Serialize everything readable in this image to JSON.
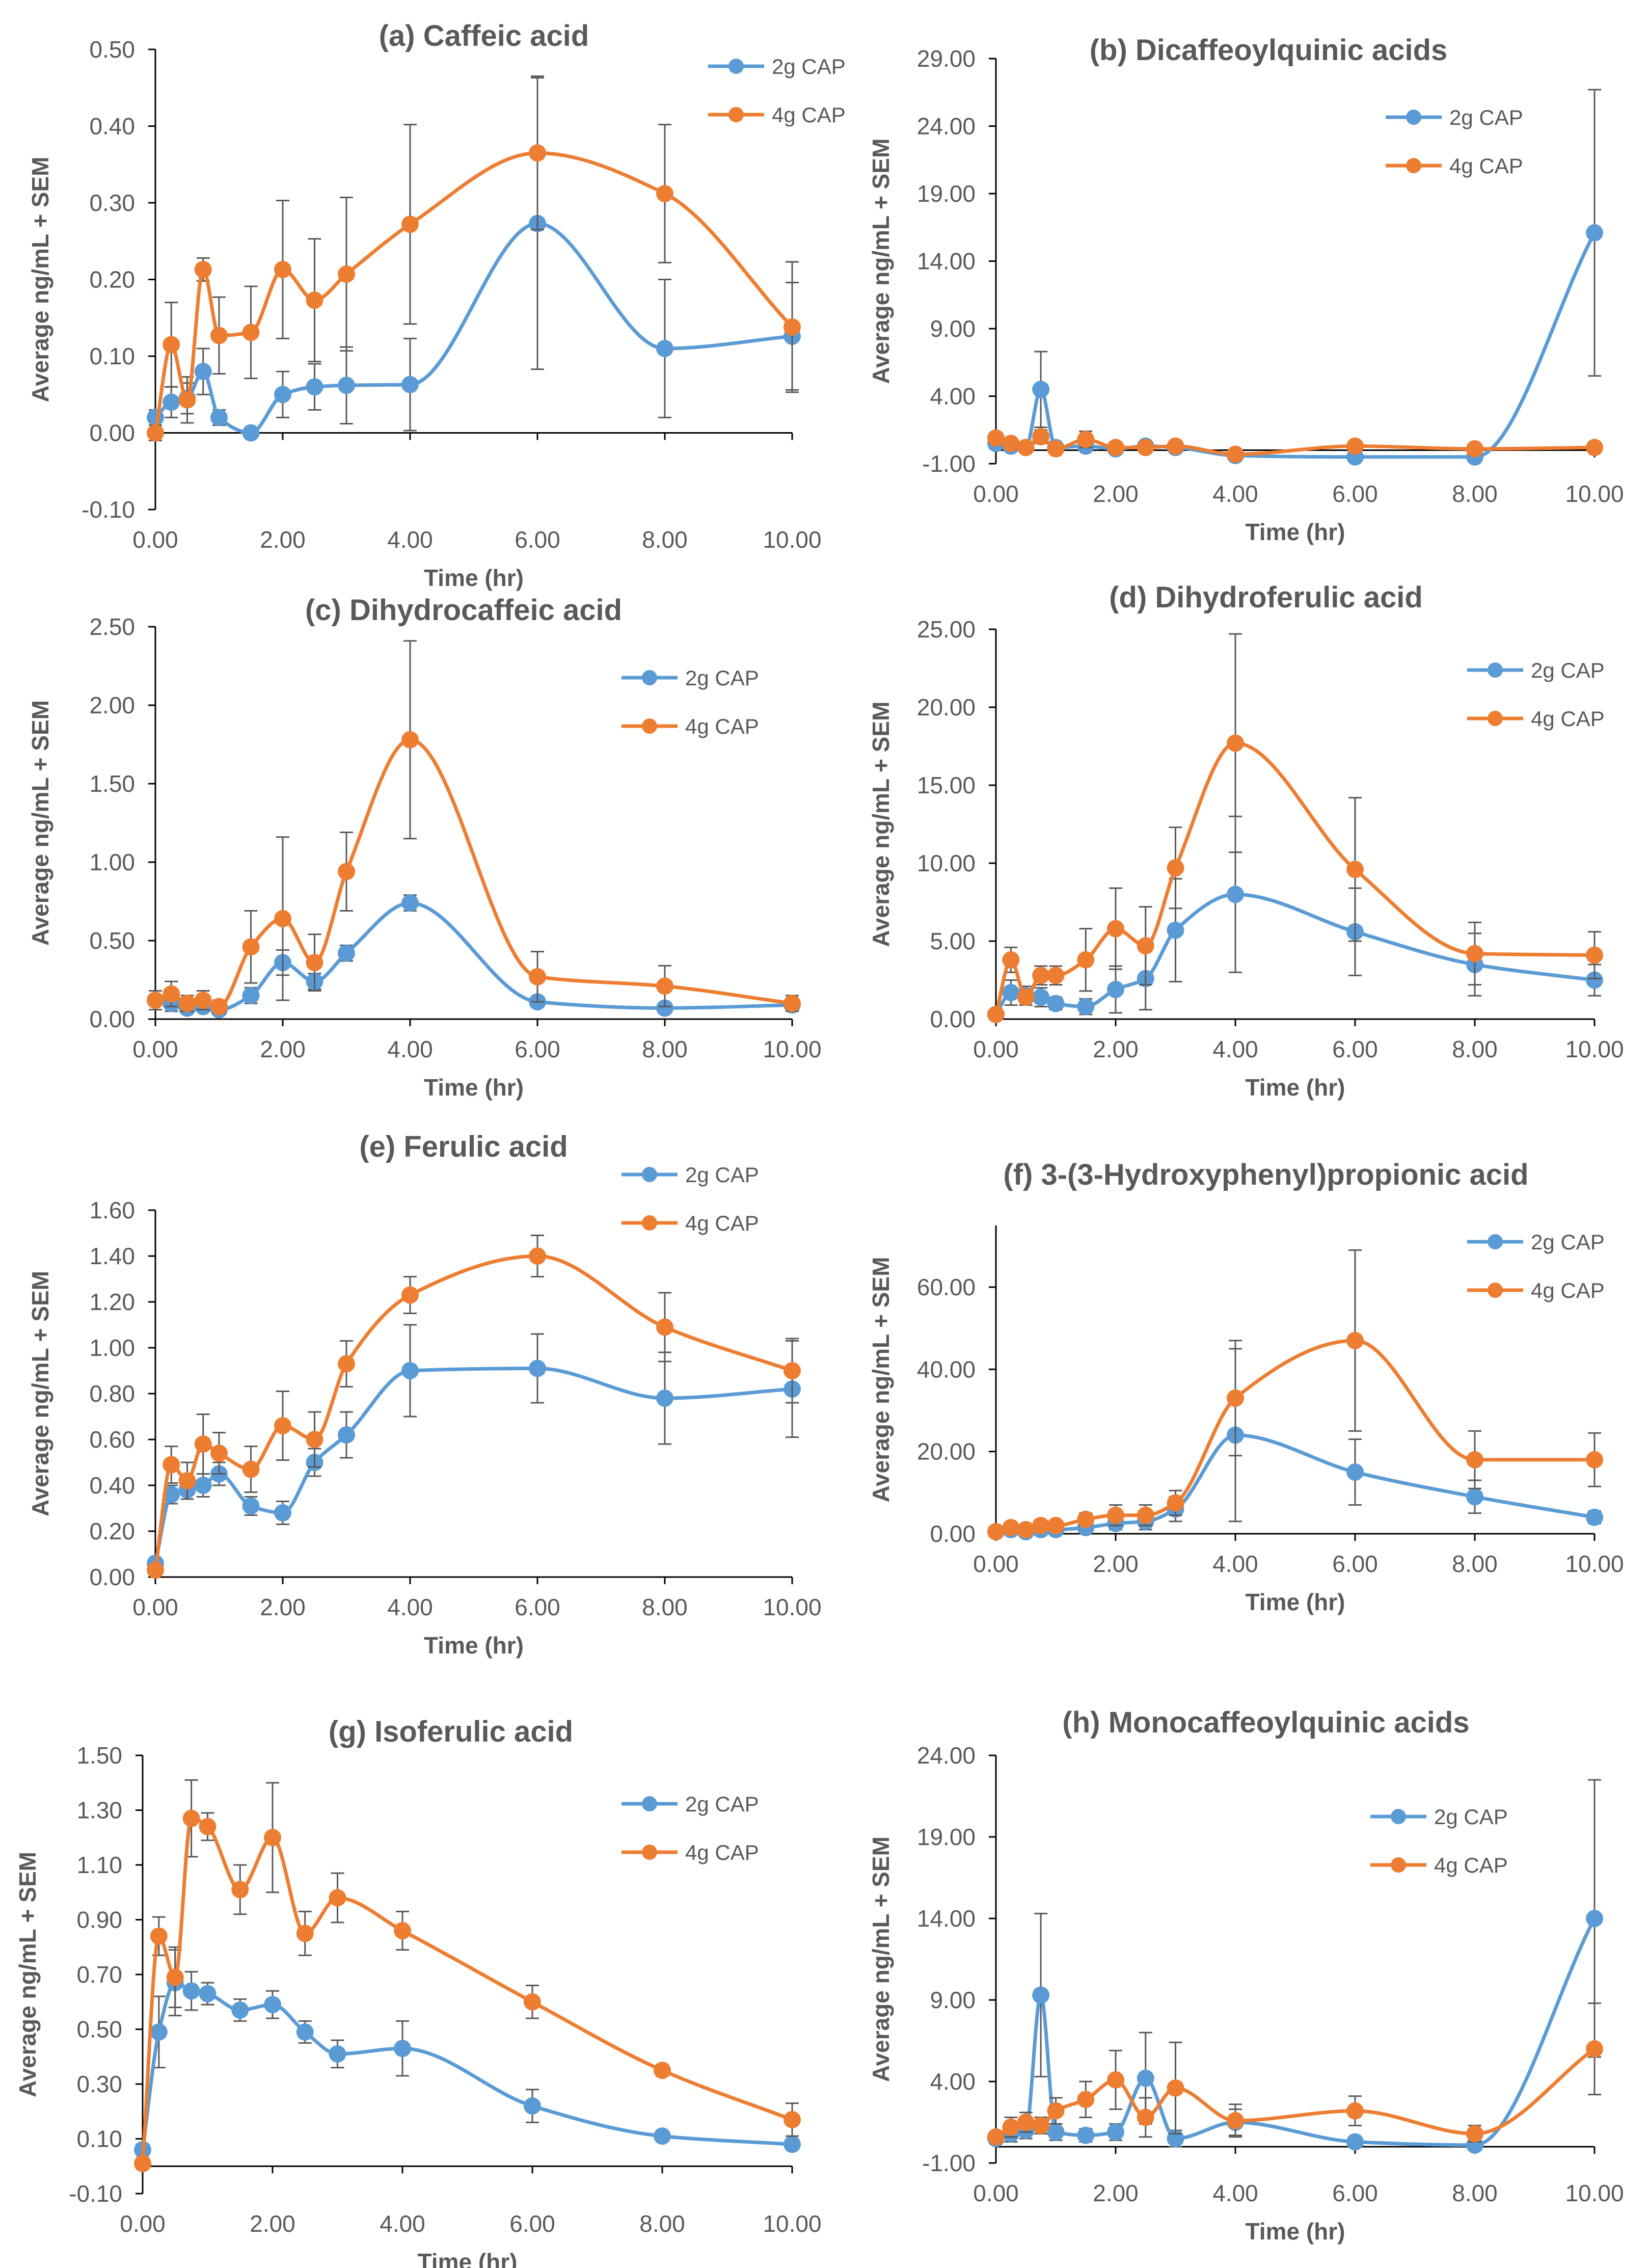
{
  "figure": {
    "series_names": [
      "2g CAP",
      "4g CAP"
    ],
    "colors": {
      "2g CAP": "#5B9BD5",
      "4g CAP": "#ED7D31",
      "errorbar": "#595959",
      "text": "#595959",
      "axis": "#000000"
    }
  },
  "chart_data": [
    {
      "id": "a",
      "type": "line",
      "title": "(a) Caffeic acid",
      "xlabel": "Time (hr)",
      "ylabel": "Average ng/mL + SEM",
      "xlim": [
        0,
        10
      ],
      "ylim": [
        -0.1,
        0.5
      ],
      "xticks": [
        0,
        2,
        4,
        6,
        8,
        10
      ],
      "xtick_labels": [
        "0.00",
        "2.00",
        "4.00",
        "6.00",
        "8.00",
        "10.00"
      ],
      "yticks": [
        -0.1,
        0,
        0.1,
        0.2,
        0.3,
        0.4,
        0.5
      ],
      "ytick_labels": [
        "-0.10",
        "0.00",
        "0.10",
        "0.20",
        "0.30",
        "0.40",
        "0.50"
      ],
      "legend_position": "top-right",
      "series": [
        {
          "name": "2g CAP",
          "x": [
            0,
            0.25,
            0.5,
            0.75,
            1,
            1.5,
            2,
            2.5,
            3,
            4,
            6,
            8,
            10
          ],
          "values": [
            0.02,
            0.04,
            0.045,
            0.08,
            0.02,
            0.0,
            0.05,
            0.06,
            0.062,
            0.063,
            0.273,
            0.11,
            0.126
          ],
          "sem": [
            0.01,
            0.02,
            0.02,
            0.03,
            0.01,
            0.005,
            0.03,
            0.03,
            0.05,
            0.06,
            0.19,
            0.09,
            0.07
          ]
        },
        {
          "name": "4g CAP",
          "x": [
            0,
            0.25,
            0.5,
            0.75,
            1,
            1.5,
            2,
            2.5,
            3,
            4,
            6,
            8,
            10
          ],
          "values": [
            0.0,
            0.115,
            0.043,
            0.213,
            0.127,
            0.131,
            0.213,
            0.173,
            0.207,
            0.272,
            0.365,
            0.312,
            0.138
          ],
          "sem": [
            0.01,
            0.055,
            0.03,
            0.015,
            0.05,
            0.06,
            0.09,
            0.08,
            0.1,
            0.13,
            0.1,
            0.09,
            0.085
          ]
        }
      ]
    },
    {
      "id": "b",
      "type": "line",
      "title": "(b) Dicaffeoylquinic acids",
      "xlabel": "Time (hr)",
      "ylabel": "Average ng/mL + SEM",
      "xlim": [
        0,
        10
      ],
      "ylim": [
        -1,
        29
      ],
      "xticks": [
        0,
        2,
        4,
        6,
        8,
        10
      ],
      "xtick_labels": [
        "0.00",
        "2.00",
        "4.00",
        "6.00",
        "8.00",
        "10.00"
      ],
      "yticks": [
        -1,
        4,
        9,
        14,
        19,
        24,
        29
      ],
      "ytick_labels": [
        "-1.00",
        "4.00",
        "9.00",
        "14.00",
        "19.00",
        "24.00",
        "29.00"
      ],
      "legend_position": "top-center",
      "series": [
        {
          "name": "2g CAP",
          "x": [
            0,
            0.25,
            0.5,
            0.75,
            1,
            1.5,
            2,
            2.5,
            3,
            4,
            6,
            8,
            10
          ],
          "values": [
            0.5,
            0.3,
            0.2,
            4.5,
            0.2,
            0.3,
            0.1,
            0.3,
            0.2,
            -0.4,
            -0.5,
            -0.5,
            16.1
          ],
          "sem": [
            0.4,
            0.3,
            0.3,
            2.8,
            0.2,
            0.3,
            0.2,
            0.2,
            0.2,
            0.3,
            0.3,
            0.3,
            10.6
          ]
        },
        {
          "name": "4g CAP",
          "x": [
            0,
            0.25,
            0.5,
            0.75,
            1,
            1.5,
            2,
            2.5,
            3,
            4,
            6,
            8,
            10
          ],
          "values": [
            0.9,
            0.5,
            0.2,
            1.0,
            0.1,
            0.8,
            0.2,
            0.2,
            0.3,
            -0.3,
            0.3,
            0.1,
            0.2
          ],
          "sem": [
            0.4,
            0.3,
            0.3,
            0.5,
            0.2,
            0.6,
            0.3,
            0.2,
            0.2,
            0.3,
            0.3,
            0.2,
            0.3
          ]
        }
      ]
    },
    {
      "id": "c",
      "type": "line",
      "title": "(c) Dihydrocaffeic acid",
      "xlabel": "Time (hr)",
      "ylabel": "Average ng/mL + SEM",
      "xlim": [
        0,
        10
      ],
      "ylim": [
        0,
        2.5
      ],
      "xticks": [
        0,
        2,
        4,
        6,
        8,
        10
      ],
      "xtick_labels": [
        "0.00",
        "2.00",
        "4.00",
        "6.00",
        "8.00",
        "10.00"
      ],
      "yticks": [
        0,
        0.5,
        1,
        1.5,
        2,
        2.5
      ],
      "ytick_labels": [
        "0.00",
        "0.50",
        "1.00",
        "1.50",
        "2.00",
        "2.50"
      ],
      "legend_position": "top-right",
      "series": [
        {
          "name": "2g CAP",
          "x": [
            0,
            0.25,
            0.5,
            0.75,
            1,
            1.5,
            2,
            2.5,
            3,
            4,
            6,
            8,
            10
          ],
          "values": [
            0.12,
            0.1,
            0.07,
            0.08,
            0.06,
            0.15,
            0.36,
            0.24,
            0.42,
            0.74,
            0.11,
            0.07,
            0.09
          ],
          "sem": [
            0.03,
            0.05,
            0.03,
            0.03,
            0.02,
            0.05,
            0.08,
            0.05,
            0.05,
            0.05,
            0.03,
            0.03,
            0.03
          ]
        },
        {
          "name": "4g CAP",
          "x": [
            0,
            0.25,
            0.5,
            0.75,
            1,
            1.5,
            2,
            2.5,
            3,
            4,
            6,
            8,
            10
          ],
          "values": [
            0.12,
            0.16,
            0.1,
            0.12,
            0.08,
            0.46,
            0.64,
            0.36,
            0.94,
            1.78,
            0.27,
            0.21,
            0.1
          ],
          "sem": [
            0.06,
            0.08,
            0.05,
            0.06,
            0.04,
            0.23,
            0.52,
            0.18,
            0.25,
            0.63,
            0.16,
            0.13,
            0.05
          ]
        }
      ]
    },
    {
      "id": "d",
      "type": "line",
      "title": "(d) Dihydroferulic acid",
      "xlabel": "Time (hr)",
      "ylabel": "Average ng/mL + SEM",
      "xlim": [
        0,
        10
      ],
      "ylim": [
        0,
        25
      ],
      "xticks": [
        0,
        2,
        4,
        6,
        8,
        10
      ],
      "xtick_labels": [
        "0.00",
        "2.00",
        "4.00",
        "6.00",
        "8.00",
        "10.00"
      ],
      "yticks": [
        0,
        5,
        10,
        15,
        20,
        25
      ],
      "ytick_labels": [
        "0.00",
        "5.00",
        "10.00",
        "15.00",
        "20.00",
        "25.00"
      ],
      "legend_position": "top-right",
      "series": [
        {
          "name": "2g CAP",
          "x": [
            0,
            0.25,
            0.5,
            0.75,
            1,
            1.5,
            2,
            2.5,
            3,
            4,
            6,
            8,
            10
          ],
          "values": [
            0.3,
            1.7,
            1.5,
            1.4,
            1.0,
            0.8,
            1.9,
            2.6,
            5.7,
            8.0,
            5.6,
            3.5,
            2.5
          ],
          "sem": [
            0.2,
            0.8,
            0.6,
            0.6,
            0.4,
            0.5,
            1.5,
            2.0,
            3.3,
            5.0,
            2.8,
            2.0,
            1.0
          ]
        },
        {
          "name": "4g CAP",
          "x": [
            0,
            0.25,
            0.5,
            0.75,
            1,
            1.5,
            2,
            2.5,
            3,
            4,
            6,
            8,
            10
          ],
          "values": [
            0.3,
            3.8,
            1.4,
            2.8,
            2.8,
            3.8,
            5.8,
            4.7,
            9.7,
            17.7,
            9.6,
            4.2,
            4.1
          ],
          "sem": [
            0.2,
            0.8,
            0.5,
            0.6,
            0.6,
            2.0,
            2.6,
            2.5,
            2.6,
            7.0,
            4.6,
            2.0,
            1.5
          ]
        }
      ]
    },
    {
      "id": "e",
      "type": "line",
      "title": "(e) Ferulic acid",
      "xlabel": "Time (hr)",
      "ylabel": "Average ng/mL + SEM",
      "xlim": [
        0,
        10
      ],
      "ylim": [
        0,
        1.6
      ],
      "xticks": [
        0,
        2,
        4,
        6,
        8,
        10
      ],
      "xtick_labels": [
        "0.00",
        "2.00",
        "4.00",
        "6.00",
        "8.00",
        "10.00"
      ],
      "yticks": [
        0,
        0.2,
        0.4,
        0.6,
        0.8,
        1,
        1.2,
        1.4,
        1.6
      ],
      "ytick_labels": [
        "0.00",
        "0.20",
        "0.40",
        "0.60",
        "0.80",
        "1.00",
        "1.20",
        "1.40",
        "1.60"
      ],
      "legend_position": "top-right",
      "series": [
        {
          "name": "2g CAP",
          "x": [
            0,
            0.25,
            0.5,
            0.75,
            1,
            1.5,
            2,
            2.5,
            3,
            4,
            6,
            8,
            10
          ],
          "values": [
            0.06,
            0.36,
            0.38,
            0.4,
            0.45,
            0.31,
            0.28,
            0.5,
            0.62,
            0.9,
            0.91,
            0.78,
            0.82
          ],
          "sem": [
            0.02,
            0.04,
            0.04,
            0.05,
            0.05,
            0.04,
            0.05,
            0.06,
            0.1,
            0.2,
            0.15,
            0.2,
            0.21
          ]
        },
        {
          "name": "4g CAP",
          "x": [
            0,
            0.25,
            0.5,
            0.75,
            1,
            1.5,
            2,
            2.5,
            3,
            4,
            6,
            8,
            10
          ],
          "values": [
            0.03,
            0.49,
            0.42,
            0.58,
            0.54,
            0.47,
            0.66,
            0.6,
            0.93,
            1.23,
            1.4,
            1.09,
            0.9
          ],
          "sem": [
            0.02,
            0.08,
            0.08,
            0.13,
            0.09,
            0.1,
            0.15,
            0.12,
            0.1,
            0.08,
            0.09,
            0.15,
            0.14
          ]
        }
      ]
    },
    {
      "id": "f",
      "type": "line",
      "title": "(f) 3-(3-Hydroxyphenyl)propionic acid",
      "xlabel": "Time (hr)",
      "ylabel": "Average ng/mL + SEM",
      "xlim": [
        0,
        10
      ],
      "ylim": [
        0,
        75
      ],
      "xticks": [
        0,
        2,
        4,
        6,
        8,
        10
      ],
      "xtick_labels": [
        "0.00",
        "2.00",
        "4.00",
        "6.00",
        "8.00",
        "10.00"
      ],
      "yticks": [
        0,
        20,
        40,
        60
      ],
      "ytick_labels": [
        "0.00",
        "20.00",
        "40.00",
        "60.00"
      ],
      "legend_position": "top-right",
      "series": [
        {
          "name": "2g CAP",
          "x": [
            0,
            0.25,
            0.5,
            0.75,
            1,
            1.5,
            2,
            2.5,
            3,
            4,
            6,
            8,
            10
          ],
          "values": [
            0.5,
            1.0,
            0.5,
            1.0,
            1.0,
            1.5,
            2.5,
            3.0,
            6.0,
            24.0,
            15.0,
            9.0,
            4.0
          ],
          "sem": [
            0.3,
            0.5,
            0.4,
            0.5,
            0.5,
            0.8,
            1.5,
            2.0,
            3.0,
            21.0,
            8.0,
            4.0,
            1.5
          ]
        },
        {
          "name": "4g CAP",
          "x": [
            0,
            0.25,
            0.5,
            0.75,
            1,
            1.5,
            2,
            2.5,
            3,
            4,
            6,
            8,
            10
          ],
          "values": [
            0.5,
            1.5,
            1.0,
            2.0,
            2.0,
            3.5,
            4.5,
            4.5,
            7.5,
            33.0,
            47.0,
            18.0,
            18.0
          ],
          "sem": [
            0.3,
            0.8,
            0.5,
            1.0,
            1.0,
            1.5,
            2.5,
            2.5,
            3.0,
            14.0,
            22.0,
            7.0,
            6.5
          ]
        }
      ]
    },
    {
      "id": "g",
      "type": "line",
      "title": "(g) Isoferulic acid",
      "xlabel": "Time (hr)",
      "ylabel": "Average ng/mL + SEM",
      "xlim": [
        0,
        10
      ],
      "ylim": [
        -0.1,
        1.5
      ],
      "xticks": [
        0,
        2,
        4,
        6,
        8,
        10
      ],
      "xtick_labels": [
        "0.00",
        "2.00",
        "4.00",
        "6.00",
        "8.00",
        "10.00"
      ],
      "yticks": [
        -0.1,
        0.1,
        0.3,
        0.5,
        0.7,
        0.9,
        1.1,
        1.3,
        1.5
      ],
      "ytick_labels": [
        "-0.10",
        "0.10",
        "0.30",
        "0.50",
        "0.70",
        "0.90",
        "1.10",
        "1.30",
        "1.50"
      ],
      "legend_position": "top-right",
      "series": [
        {
          "name": "2g CAP",
          "x": [
            0,
            0.25,
            0.5,
            0.75,
            1,
            1.5,
            2,
            2.5,
            3,
            4,
            6,
            8,
            10
          ],
          "values": [
            0.06,
            0.49,
            0.67,
            0.64,
            0.63,
            0.57,
            0.59,
            0.49,
            0.41,
            0.43,
            0.22,
            0.11,
            0.08
          ],
          "sem": [
            0.02,
            0.13,
            0.12,
            0.07,
            0.04,
            0.04,
            0.05,
            0.04,
            0.05,
            0.1,
            0.06,
            0.02,
            0.02
          ]
        },
        {
          "name": "4g CAP",
          "x": [
            0,
            0.25,
            0.5,
            0.75,
            1,
            1.5,
            2,
            2.5,
            3,
            4,
            6,
            8,
            10
          ],
          "values": [
            0.01,
            0.84,
            0.69,
            1.27,
            1.24,
            1.01,
            1.2,
            0.85,
            0.98,
            0.86,
            0.6,
            0.35,
            0.17
          ],
          "sem": [
            0.02,
            0.07,
            0.11,
            0.14,
            0.05,
            0.09,
            0.2,
            0.08,
            0.09,
            0.07,
            0.06,
            0.02,
            0.06
          ]
        }
      ]
    },
    {
      "id": "h",
      "type": "line",
      "title": "(h) Monocaffeoylquinic acids",
      "xlabel": "Time (hr)",
      "ylabel": "Average ng/mL + SEM",
      "xlim": [
        0,
        10
      ],
      "ylim": [
        -1,
        24
      ],
      "xticks": [
        0,
        2,
        4,
        6,
        8,
        10
      ],
      "xtick_labels": [
        "0.00",
        "2.00",
        "4.00",
        "6.00",
        "8.00",
        "10.00"
      ],
      "yticks": [
        -1,
        4,
        9,
        14,
        19,
        24
      ],
      "ytick_labels": [
        "-1.00",
        "4.00",
        "9.00",
        "14.00",
        "19.00",
        "24.00"
      ],
      "legend_position": "top-center",
      "series": [
        {
          "name": "2g CAP",
          "x": [
            0,
            0.25,
            0.5,
            0.75,
            1,
            1.5,
            2,
            2.5,
            3,
            4,
            6,
            8,
            10
          ],
          "values": [
            0.5,
            0.8,
            1.0,
            9.3,
            0.9,
            0.7,
            0.9,
            4.2,
            0.5,
            1.5,
            0.3,
            0.1,
            14.0
          ],
          "sem": [
            0.3,
            0.5,
            0.5,
            5.0,
            0.5,
            0.4,
            0.5,
            2.8,
            0.5,
            0.8,
            0.3,
            0.2,
            8.5
          ]
        },
        {
          "name": "4g CAP",
          "x": [
            0,
            0.25,
            0.5,
            0.75,
            1,
            1.5,
            2,
            2.5,
            3,
            4,
            6,
            8,
            10
          ],
          "values": [
            0.6,
            1.2,
            1.5,
            1.3,
            2.2,
            2.9,
            4.1,
            1.8,
            3.6,
            1.6,
            2.2,
            0.8,
            6.0
          ],
          "sem": [
            0.3,
            0.6,
            0.6,
            0.5,
            0.8,
            1.1,
            1.8,
            1.2,
            2.8,
            1.0,
            0.9,
            0.5,
            2.8
          ]
        }
      ]
    }
  ]
}
